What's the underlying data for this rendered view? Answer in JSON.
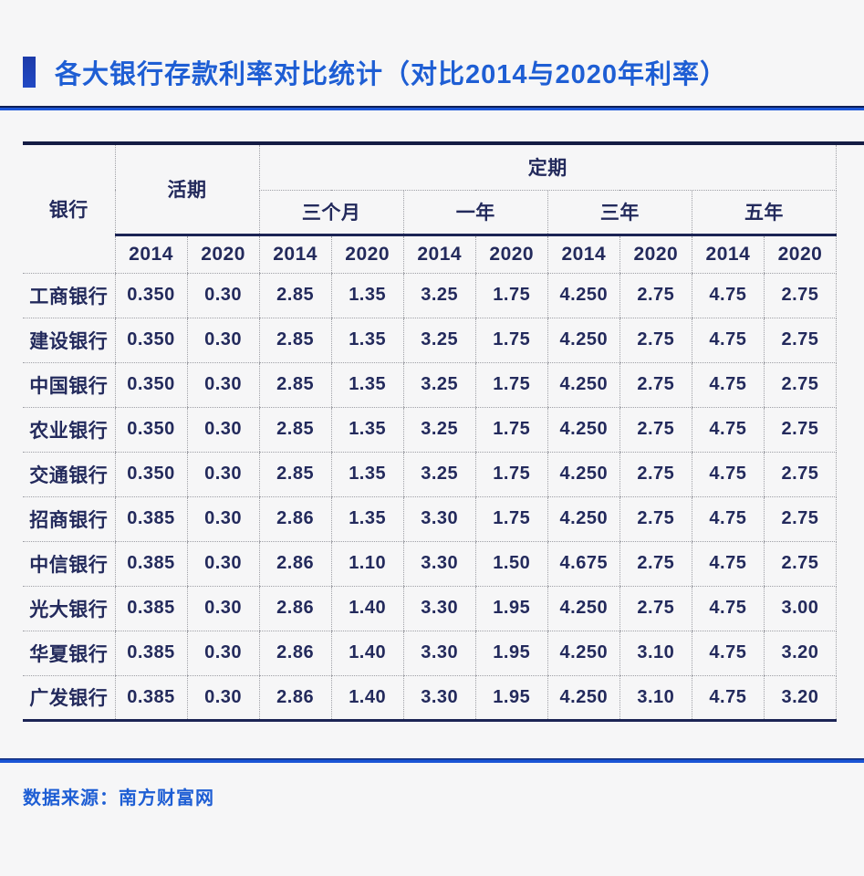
{
  "chart_data": {
    "type": "table",
    "title": "各大银行存款利率对比统计（对比2014与2020年利率）",
    "header": {
      "bank": "银行",
      "demand_group": "活期",
      "fixed_group": "定期"
    },
    "terms": [
      "三个月",
      "一年",
      "三年",
      "五年"
    ],
    "years": [
      "2014",
      "2020"
    ],
    "columns": [
      "银行",
      "活期 2014",
      "活期 2020",
      "三个月 2014",
      "三个月 2020",
      "一年 2014",
      "一年 2020",
      "三年 2014",
      "三年 2020",
      "五年 2014",
      "五年 2020"
    ],
    "rows": [
      {
        "bank": "工商银行",
        "values": [
          "0.350",
          "0.30",
          "2.85",
          "1.35",
          "3.25",
          "1.75",
          "4.250",
          "2.75",
          "4.75",
          "2.75"
        ]
      },
      {
        "bank": "建设银行",
        "values": [
          "0.350",
          "0.30",
          "2.85",
          "1.35",
          "3.25",
          "1.75",
          "4.250",
          "2.75",
          "4.75",
          "2.75"
        ]
      },
      {
        "bank": "中国银行",
        "values": [
          "0.350",
          "0.30",
          "2.85",
          "1.35",
          "3.25",
          "1.75",
          "4.250",
          "2.75",
          "4.75",
          "2.75"
        ]
      },
      {
        "bank": "农业银行",
        "values": [
          "0.350",
          "0.30",
          "2.85",
          "1.35",
          "3.25",
          "1.75",
          "4.250",
          "2.75",
          "4.75",
          "2.75"
        ]
      },
      {
        "bank": "交通银行",
        "values": [
          "0.350",
          "0.30",
          "2.85",
          "1.35",
          "3.25",
          "1.75",
          "4.250",
          "2.75",
          "4.75",
          "2.75"
        ]
      },
      {
        "bank": "招商银行",
        "values": [
          "0.385",
          "0.30",
          "2.86",
          "1.35",
          "3.30",
          "1.75",
          "4.250",
          "2.75",
          "4.75",
          "2.75"
        ]
      },
      {
        "bank": "中信银行",
        "values": [
          "0.385",
          "0.30",
          "2.86",
          "1.10",
          "3.30",
          "1.50",
          "4.675",
          "2.75",
          "4.75",
          "2.75"
        ]
      },
      {
        "bank": "光大银行",
        "values": [
          "0.385",
          "0.30",
          "2.86",
          "1.40",
          "3.30",
          "1.95",
          "4.250",
          "2.75",
          "4.75",
          "3.00"
        ]
      },
      {
        "bank": "华夏银行",
        "values": [
          "0.385",
          "0.30",
          "2.86",
          "1.40",
          "3.30",
          "1.95",
          "4.250",
          "3.10",
          "4.75",
          "3.20"
        ]
      },
      {
        "bank": "广发银行",
        "values": [
          "0.385",
          "0.30",
          "2.86",
          "1.40",
          "3.30",
          "1.95",
          "4.250",
          "3.10",
          "4.75",
          "3.20"
        ]
      }
    ]
  },
  "footer": {
    "source": "数据来源：南方财富网"
  },
  "colors": {
    "accent_blue": "#1e5ed4",
    "line_blue": "#1b55d6",
    "line_navy": "#141c44",
    "text_navy": "#232a5c",
    "grid_dotted": "#9fa0a6",
    "background": "#f6f6f7"
  }
}
